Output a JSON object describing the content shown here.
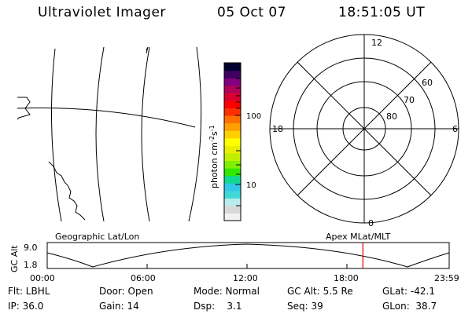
{
  "header": {
    "instrument": "Ultraviolet Imager",
    "date": "05 Oct 07",
    "time": "18:51:05 UT"
  },
  "colorbar": {
    "label": "photon cm",
    "exp1": "-2",
    "mid": "s",
    "exp2": "-1",
    "ticks": [
      "100",
      "10"
    ],
    "colors": [
      "#f2f2f2",
      "#d8d8d8",
      "#b8ecec",
      "#40d8d8",
      "#30c8e8",
      "#10d890",
      "#30e800",
      "#80f000",
      "#c0f000",
      "#e8f000",
      "#ffff00",
      "#ffd000",
      "#ffa000",
      "#ff7000",
      "#ff3000",
      "#ff0000",
      "#d80030",
      "#b00058",
      "#800080",
      "#400060",
      "#000030"
    ]
  },
  "polar": {
    "mlt_labels": {
      "top": "12",
      "left": "18",
      "right": "6",
      "bottom": "0"
    },
    "lat_labels": [
      "60",
      "70",
      "80"
    ]
  },
  "geo": {
    "label": "Geographic Lat/Lon"
  },
  "apex": {
    "label": "Apex MLat/MLT"
  },
  "timeline": {
    "ylabel": "GC Alt",
    "ymax": "9.0",
    "ymin": "1.8",
    "xticks": [
      "00:00",
      "06:00",
      "12:00",
      "18:00",
      "23:59"
    ],
    "marker_hour": 18.85,
    "marker_color": "#e00000"
  },
  "info": {
    "row1": [
      "Flt: LBHL",
      "Door: Open",
      "Mode: Normal",
      "GC Alt: 5.5 Re",
      "GLat: -42.1"
    ],
    "row2": [
      "IP: 36.0",
      "Gain: 14",
      "Dsp:    3.1",
      "Seq: 39",
      "GLon:  38.7"
    ]
  }
}
